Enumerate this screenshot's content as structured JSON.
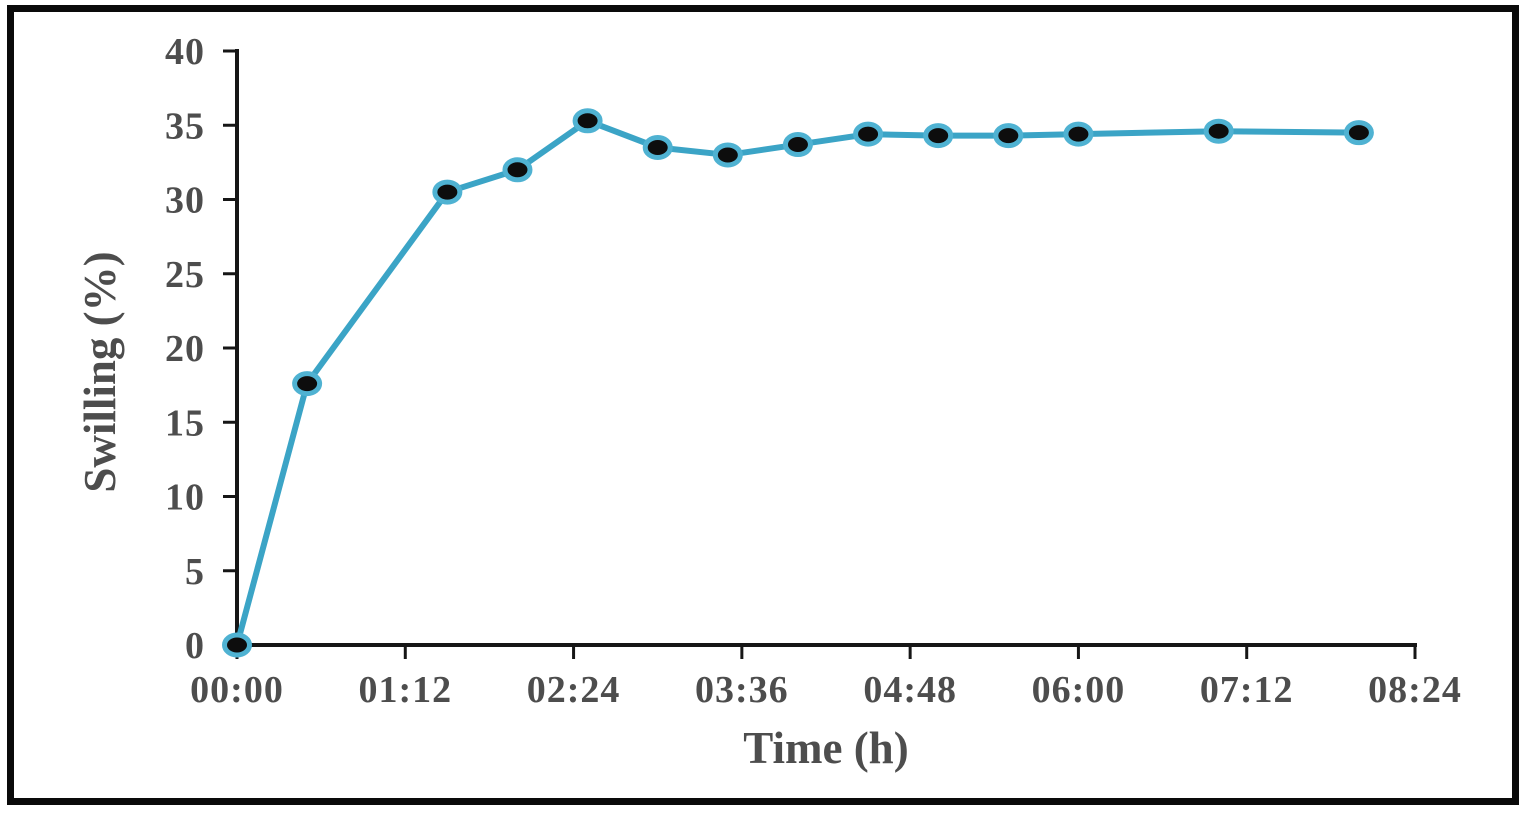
{
  "figure": {
    "background": "#ffffff",
    "frame_color": "#0a0a0a"
  },
  "chart_data": {
    "type": "line",
    "title": "",
    "xlabel": "Time (h)",
    "ylabel": "Swilling (%)",
    "x_format": "hh:mm",
    "x": [
      0,
      0.5,
      1.5,
      2,
      2.5,
      3,
      3.5,
      4,
      4.5,
      5,
      5.5,
      6,
      7,
      8
    ],
    "y": [
      0,
      17.6,
      30.5,
      32.0,
      35.3,
      33.5,
      33.0,
      33.7,
      34.4,
      34.3,
      34.3,
      34.4,
      34.6,
      34.5
    ],
    "xlim": [
      0,
      8.4
    ],
    "ylim": [
      0,
      40
    ],
    "x_ticks": {
      "values": [
        0,
        1.2,
        2.4,
        3.6,
        4.8,
        6.0,
        7.2,
        8.4
      ],
      "labels": [
        "00:00",
        "01:12",
        "02:24",
        "03:36",
        "04:48",
        "06:00",
        "07:12",
        "08:24"
      ]
    },
    "y_ticks": {
      "values": [
        0,
        5,
        10,
        15,
        20,
        25,
        30,
        35,
        40
      ],
      "labels": [
        "0",
        "5",
        "10",
        "15",
        "20",
        "25",
        "30",
        "35",
        "40"
      ]
    },
    "grid": false,
    "legend": "none",
    "colors": {
      "line": "#3BA4C6",
      "marker_fill": "#0d0d0d",
      "marker_ring": "#4FB2D2",
      "axis": "#161616",
      "tick_label": "#4d4d4d",
      "axis_title": "#4d4d4d"
    }
  }
}
